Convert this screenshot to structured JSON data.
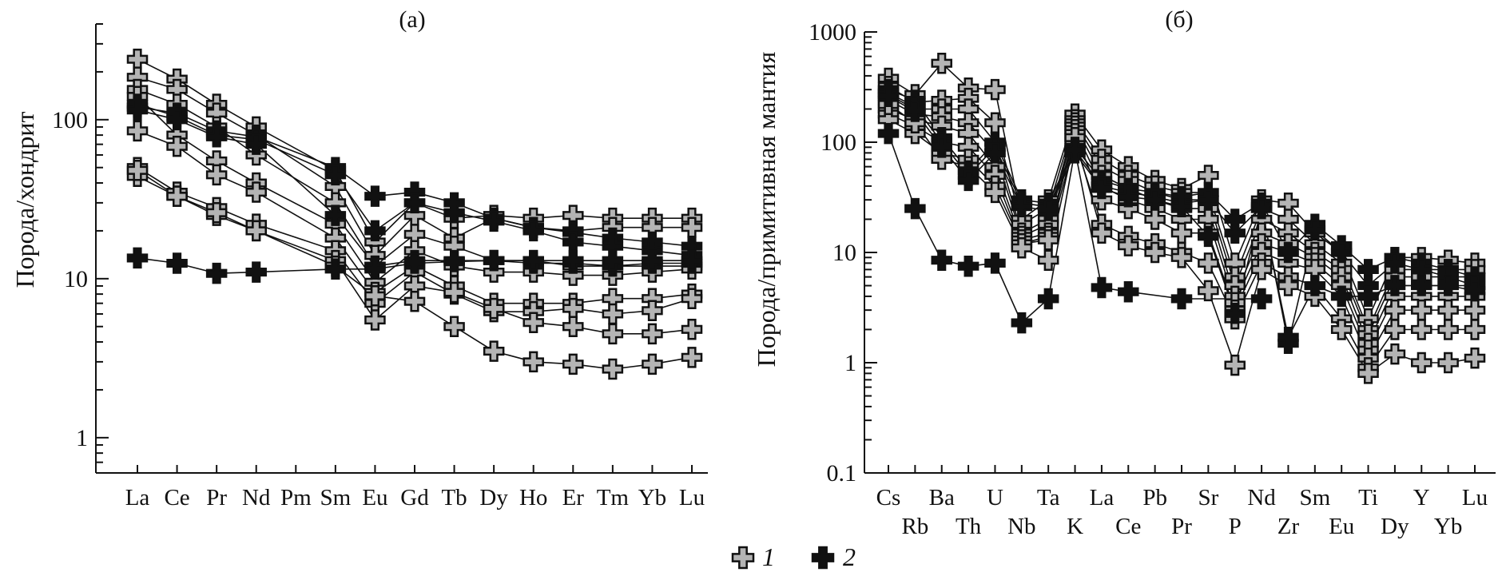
{
  "legend": {
    "items": [
      {
        "label": "1",
        "color": "#b4b4b4"
      },
      {
        "label": "2",
        "color": "#111111"
      }
    ]
  },
  "chart_data": [
    {
      "type": "line",
      "title": "(а)",
      "ylabel": "Порода/хондрит",
      "xlabel": "",
      "yscale": "log",
      "ylim": [
        0.6,
        400
      ],
      "yticks": [
        1,
        10,
        100
      ],
      "categories": [
        "La",
        "Ce",
        "Pr",
        "Nd",
        "Pm",
        "Sm",
        "Eu",
        "Gd",
        "Tb",
        "Dy",
        "Ho",
        "Er",
        "Tm",
        "Yb",
        "Lu"
      ],
      "series": [
        {
          "name": "1",
          "values": [
            240,
            180,
            125,
            90,
            null,
            48,
            17,
            30,
            24,
            25,
            24,
            25,
            24,
            24,
            24
          ]
        },
        {
          "name": "1",
          "values": [
            185,
            155,
            110,
            80,
            null,
            38,
            14,
            25,
            18,
            24,
            21,
            20,
            21,
            21,
            21
          ]
        },
        {
          "name": "1",
          "values": [
            155,
            125,
            90,
            60,
            null,
            30,
            12,
            19,
            16,
            13,
            13,
            12,
            12,
            12,
            12
          ]
        },
        {
          "name": "1",
          "values": [
            140,
            80,
            55,
            40,
            null,
            22,
            9.5,
            15,
            12,
            11,
            11,
            10.5,
            10.5,
            11,
            11.5
          ]
        },
        {
          "name": "1",
          "values": [
            85,
            68,
            45,
            35,
            null,
            18,
            8.2,
            12,
            9,
            7,
            7,
            7,
            7.5,
            7.5,
            8
          ]
        },
        {
          "name": "1",
          "values": [
            50,
            35,
            28,
            22,
            null,
            15,
            7,
            11,
            8,
            6.2,
            6.2,
            6.5,
            6,
            6.3,
            7.5
          ]
        },
        {
          "name": "1",
          "values": [
            44,
            33,
            25,
            20,
            null,
            13,
            5.5,
            9,
            8.2,
            6.5,
            5.3,
            5,
            4.5,
            4.5,
            4.8
          ]
        },
        {
          "name": "1",
          "values": [
            48,
            33,
            26,
            20,
            null,
            12,
            7.8,
            7.2,
            5,
            3.5,
            3,
            2.9,
            2.7,
            2.9,
            3.2
          ]
        },
        {
          "name": "2",
          "values": [
            120,
            110,
            85,
            78,
            null,
            50,
            33,
            35,
            30,
            24,
            21,
            19.5,
            18,
            17,
            16
          ]
        },
        {
          "name": "2",
          "values": [
            125,
            105,
            80,
            75,
            null,
            45,
            20,
            30,
            26,
            23,
            20,
            17,
            16,
            15,
            14
          ]
        },
        {
          "name": "2",
          "values": [
            115,
            100,
            78,
            70,
            null,
            25,
            12,
            13,
            13,
            13,
            12.5,
            12.5,
            12,
            12.5,
            12.5
          ]
        },
        {
          "name": "2",
          "values": [
            13.5,
            12.5,
            10.8,
            11,
            null,
            11.5,
            11.5,
            12.5,
            12.8,
            13,
            13,
            13,
            13,
            13,
            13
          ]
        }
      ]
    },
    {
      "type": "line",
      "title": "(б)",
      "ylabel": "Порода/примитивная мантия",
      "xlabel": "",
      "yscale": "log",
      "ylim": [
        0.1,
        1000
      ],
      "yticks": [
        0.1,
        1,
        10,
        100,
        1000
      ],
      "categories": [
        "Cs",
        "Rb",
        "Ba",
        "Th",
        "U",
        "Nb",
        "Ta",
        "K",
        "La",
        "Ce",
        "Pb",
        "Pr",
        "Sr",
        "P",
        "Nd",
        "Zr",
        "Sm",
        "Eu",
        "Ti",
        "Dy",
        "Y",
        "Yb",
        "Lu"
      ],
      "series": [
        {
          "name": "1",
          "values": [
            380,
            270,
            520,
            310,
            300,
            20,
            30,
            180,
            85,
            60,
            45,
            38,
            50,
            8,
            30,
            28,
            15,
            10,
            2.5,
            9,
            9,
            8.5,
            8
          ]
        },
        {
          "name": "1",
          "values": [
            320,
            230,
            240,
            250,
            150,
            18,
            25,
            160,
            70,
            50,
            40,
            35,
            35,
            6,
            25,
            20,
            12,
            8,
            2,
            7,
            7,
            7,
            7
          ]
        },
        {
          "name": "1",
          "values": [
            270,
            200,
            200,
            200,
            100,
            15,
            20,
            150,
            60,
            45,
            35,
            30,
            30,
            5,
            20,
            15,
            10,
            7,
            1.8,
            6,
            6,
            6,
            6
          ]
        },
        {
          "name": "1",
          "values": [
            240,
            180,
            170,
            150,
            80,
            14,
            18,
            140,
            50,
            38,
            30,
            25,
            25,
            4,
            15,
            12,
            9,
            6,
            1.5,
            5,
            5,
            5,
            5
          ]
        },
        {
          "name": "1",
          "values": [
            200,
            160,
            140,
            120,
            60,
            13,
            15,
            130,
            40,
            30,
            25,
            20,
            20,
            3.5,
            12,
            10,
            8,
            5,
            1.3,
            4,
            4,
            4,
            4
          ]
        },
        {
          "name": "1",
          "values": [
            180,
            140,
            100,
            90,
            50,
            12,
            14,
            120,
            30,
            25,
            20,
            15,
            15,
            3,
            10,
            8,
            7,
            4,
            1.1,
            3,
            3,
            3,
            3
          ]
        },
        {
          "name": "1",
          "values": [
            160,
            120,
            80,
            70,
            40,
            12,
            13,
            100,
            18,
            14,
            12,
            10,
            8,
            2.5,
            8,
            6,
            5,
            2.5,
            0.9,
            2,
            2,
            2,
            2
          ]
        },
        {
          "name": "1",
          "values": [
            220,
            150,
            70,
            60,
            35,
            11,
            8.5,
            110,
            15,
            11.5,
            10,
            9,
            4.5,
            0.95,
            7,
            5,
            4,
            2,
            0.8,
            1.2,
            1,
            1,
            1.1
          ]
        },
        {
          "name": "2",
          "values": [
            300,
            240,
            110,
            55,
            100,
            30,
            28,
            90,
            45,
            38,
            35,
            32,
            35,
            20,
            28,
            10,
            18,
            11.5,
            7,
            9,
            8,
            7,
            6
          ]
        },
        {
          "name": "2",
          "values": [
            280,
            210,
            100,
            50,
            90,
            28,
            26,
            85,
            40,
            35,
            32,
            28,
            30,
            15,
            26,
            1.5,
            16,
            10,
            5,
            8,
            7,
            6,
            5
          ]
        },
        {
          "name": "2",
          "values": [
            260,
            190,
            90,
            45,
            80,
            26,
            24,
            80,
            38,
            32,
            30,
            26,
            14,
            2.8,
            25,
            1.7,
            5,
            4,
            4,
            5,
            5,
            5,
            4.5
          ]
        },
        {
          "name": "2",
          "values": [
            120,
            25,
            8.5,
            7.5,
            8,
            2.3,
            3.8,
            85,
            4.8,
            4.4,
            null,
            3.8,
            null,
            null,
            3.8,
            null,
            null,
            null,
            null,
            null,
            null,
            null,
            null
          ]
        }
      ]
    }
  ]
}
